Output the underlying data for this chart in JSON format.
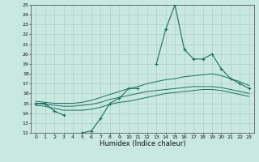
{
  "xlabel": "Humidex (Indice chaleur)",
  "bg_color": "#c8e8e0",
  "line_color": "#1a7060",
  "xlim_min": -0.5,
  "xlim_max": 23.5,
  "ylim_min": 12,
  "ylim_max": 25,
  "x": [
    0,
    1,
    2,
    3,
    4,
    5,
    6,
    7,
    8,
    9,
    10,
    11,
    12,
    13,
    14,
    15,
    16,
    17,
    18,
    19,
    20,
    21,
    22,
    23
  ],
  "y_main": [
    15.0,
    15.0,
    14.2,
    13.8,
    null,
    12.0,
    12.2,
    13.5,
    15.0,
    15.5,
    16.5,
    16.5,
    null,
    19.0,
    22.5,
    25.0,
    20.5,
    19.5,
    19.5,
    20.0,
    18.5,
    17.5,
    17.0,
    16.5
  ],
  "y_upper": [
    15.2,
    15.1,
    15.0,
    15.0,
    15.0,
    15.1,
    15.3,
    15.6,
    15.9,
    16.2,
    16.5,
    16.7,
    17.0,
    17.2,
    17.4,
    17.5,
    17.7,
    17.8,
    17.9,
    18.0,
    17.8,
    17.5,
    17.2,
    16.8
  ],
  "y_mid": [
    15.0,
    14.9,
    14.8,
    14.7,
    14.7,
    14.8,
    14.9,
    15.1,
    15.4,
    15.6,
    15.8,
    16.0,
    16.2,
    16.3,
    16.4,
    16.5,
    16.6,
    16.7,
    16.7,
    16.7,
    16.6,
    16.4,
    16.2,
    16.0
  ],
  "y_lower": [
    14.8,
    14.7,
    14.5,
    14.3,
    14.3,
    14.3,
    14.4,
    14.6,
    14.9,
    15.1,
    15.2,
    15.4,
    15.6,
    15.8,
    16.0,
    16.1,
    16.2,
    16.3,
    16.4,
    16.4,
    16.3,
    16.1,
    15.9,
    15.7
  ]
}
